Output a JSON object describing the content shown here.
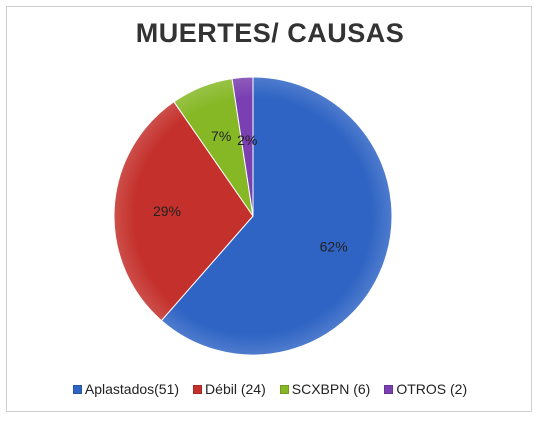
{
  "chart_data": {
    "type": "pie",
    "title": "MUERTES/ CAUSAS",
    "slices": [
      {
        "label": "Aplastados(51)",
        "value": 51,
        "pct_label": "62%",
        "color": "#2f64c4"
      },
      {
        "label": "Débil (24)",
        "value": 24,
        "pct_label": "29%",
        "color": "#c4302b"
      },
      {
        "label": "SCXBPN (6)",
        "value": 6,
        "pct_label": "7%",
        "color": "#86b826"
      },
      {
        "label": "OTROS (2)",
        "value": 2,
        "pct_label": "2%",
        "color": "#7a3fb0"
      }
    ],
    "legend_position": "bottom"
  }
}
